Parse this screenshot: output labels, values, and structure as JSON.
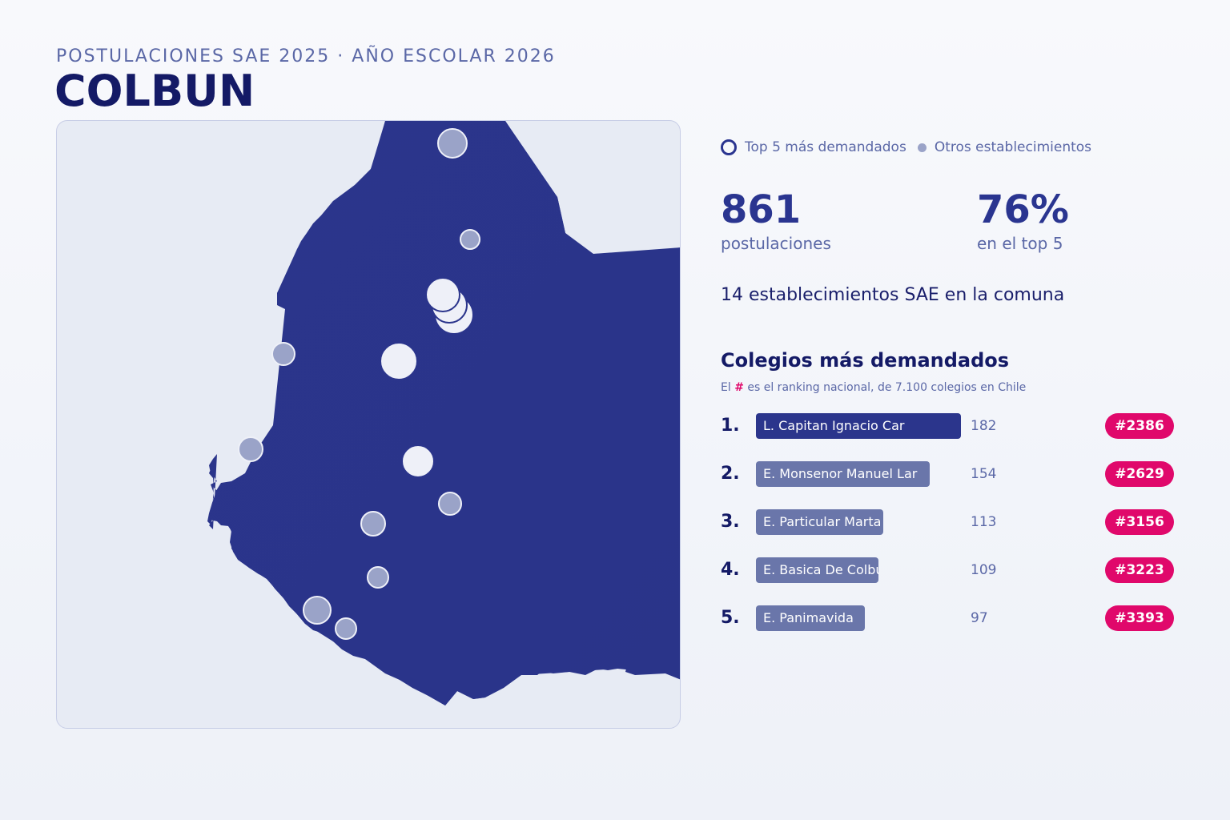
{
  "header": {
    "subtitle": "POSTULACIONES SAE 2025 · AÑO ESCOLAR 2026",
    "title": "COLBUN"
  },
  "legend": {
    "top5_label": "Top 5 más demandados",
    "others_label": "Otros establecimientos"
  },
  "stats": {
    "applications_value": "861",
    "applications_label": "postulaciones",
    "top5_share_value": "76%",
    "top5_share_label": "en el top 5"
  },
  "schools_count_text": "14 establecimientos SAE en la comuna",
  "ranking": {
    "title": "Colegios más demandados",
    "note_prefix": "El ",
    "note_hash": "#",
    "note_suffix": " es el ranking nacional, de 7.100 colegios en Chile",
    "max_value": 182,
    "items": [
      {
        "pos": "1.",
        "name": "L. Capitan Ignacio Car",
        "value": 182,
        "rank": "#2386"
      },
      {
        "pos": "2.",
        "name": "E. Monsenor Manuel Lar",
        "value": 154,
        "rank": "#2629"
      },
      {
        "pos": "3.",
        "name": "E. Particular Marta B",
        "value": 113,
        "rank": "#3156"
      },
      {
        "pos": "4.",
        "name": "E. Basica De Colbun",
        "value": 109,
        "rank": "#3223"
      },
      {
        "pos": "5.",
        "name": "E. Panimavida",
        "value": 97,
        "rank": "#3393"
      }
    ]
  },
  "colors": {
    "region_fill": "#2b358c",
    "background": "#e7ebf4",
    "top5_marker": "#eef0f8",
    "other_marker": "#9aa3c8",
    "accent": "#e0086b",
    "bar_top": "#2b358c",
    "bar_other": "#6a76aa"
  }
}
